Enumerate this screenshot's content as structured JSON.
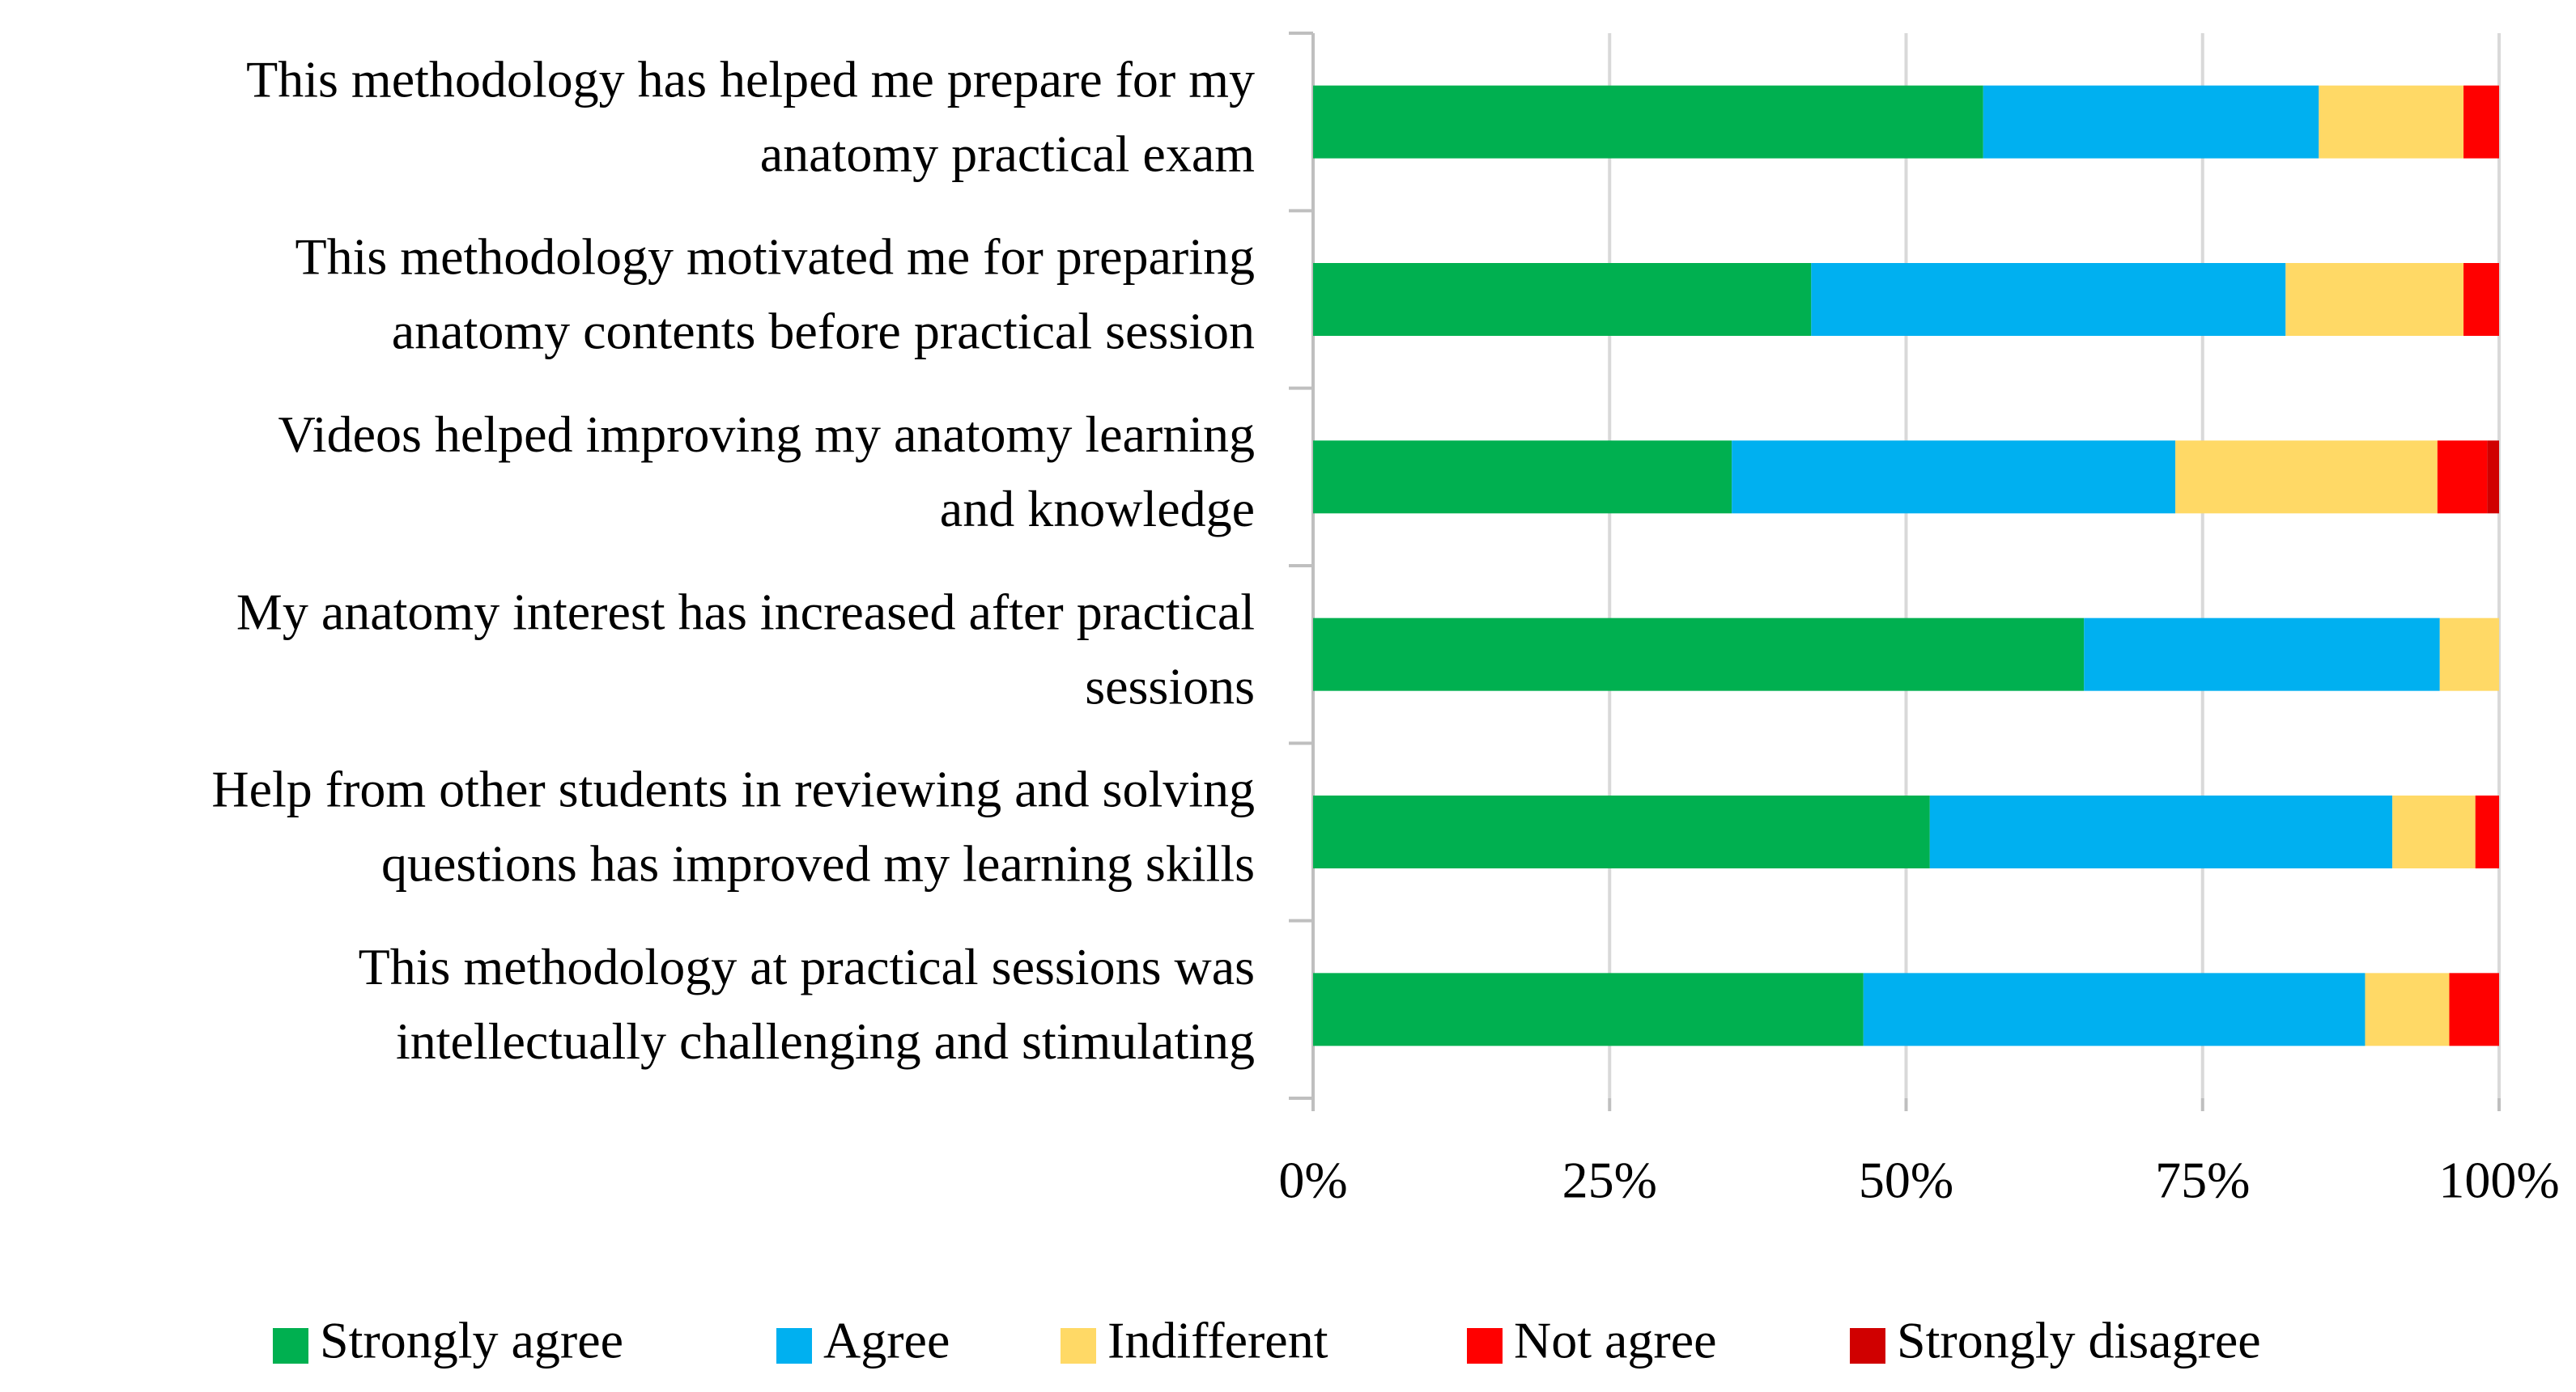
{
  "chart_data": {
    "type": "stacked-barh",
    "categories": [
      [
        "This methodology has helped me prepare for my",
        "anatomy practical exam"
      ],
      [
        "This methodology motivated me for preparing",
        "anatomy contents before practical session"
      ],
      [
        "Videos helped improving my anatomy learning",
        "and knowledge"
      ],
      [
        "My anatomy interest has increased after practical",
        "sessions"
      ],
      [
        "Help from other students in reviewing and solving",
        "questions has improved my learning skills"
      ],
      [
        "This methodology at practical sessions was",
        "intellectually challenging and stimulating"
      ]
    ],
    "series": [
      {
        "name": "Strongly agree",
        "color": "#00b050",
        "values": [
          56.5,
          42,
          35.3,
          65,
          52,
          46.4
        ]
      },
      {
        "name": "Agree",
        "color": "#00b0f0",
        "values": [
          28.3,
          40,
          37.4,
          30,
          39,
          42.3
        ]
      },
      {
        "name": "Indifferent",
        "color": "#ffd966",
        "values": [
          12.2,
          15,
          22.1,
          5,
          7,
          7.1
        ]
      },
      {
        "name": "Not agree",
        "color": "#ff0000",
        "values": [
          3,
          3,
          4.2,
          0,
          2,
          4.2
        ]
      },
      {
        "name": "Strongly disagree",
        "color": "#d00000",
        "values": [
          0,
          0,
          1,
          0,
          0,
          0
        ]
      }
    ],
    "xlim": [
      0,
      100
    ],
    "xticks": [
      {
        "value": 0,
        "label": "0%"
      },
      {
        "value": 25,
        "label": "25%"
      },
      {
        "value": 50,
        "label": "50%"
      },
      {
        "value": 75,
        "label": "75%"
      },
      {
        "value": 100,
        "label": "100%"
      }
    ],
    "grid": true,
    "legend": "bottom"
  }
}
